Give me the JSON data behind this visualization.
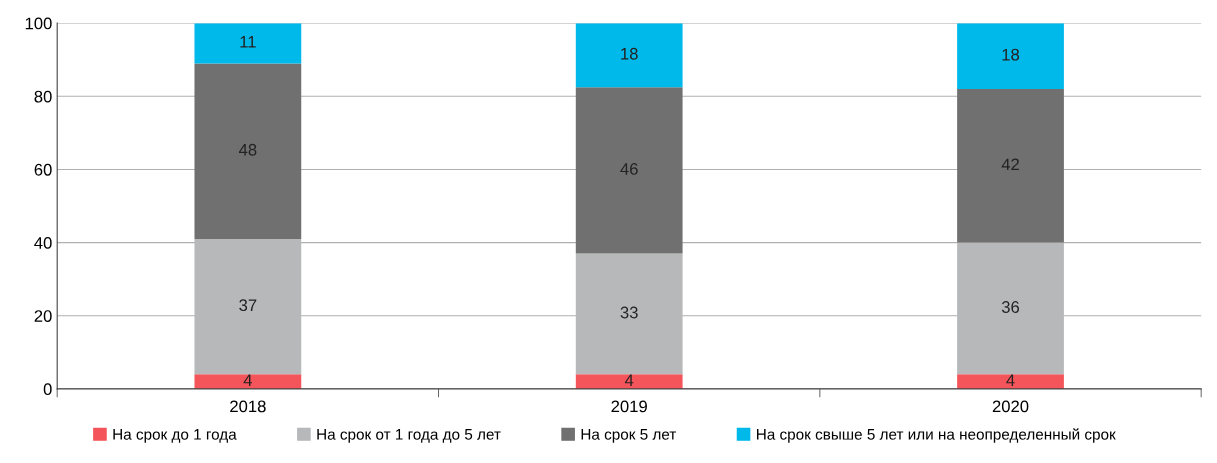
{
  "chart_data": {
    "type": "bar",
    "stacked": true,
    "categories": [
      "2018",
      "2019",
      "2020"
    ],
    "series": [
      {
        "name": "На срок до 1 года",
        "color": "#f4555a",
        "values": [
          4,
          4,
          4
        ],
        "value_labels": [
          "4",
          "4",
          "4"
        ]
      },
      {
        "name": "На срок от 1 года до 5 лет",
        "color": "#b7b8ba",
        "values": [
          37,
          33,
          36
        ],
        "value_labels": [
          "37",
          "33",
          "36"
        ]
      },
      {
        "name": "На срок 5 лет",
        "color": "#6f706f",
        "values": [
          48,
          45.5,
          42
        ],
        "value_labels": [
          "48",
          "46",
          "42"
        ]
      },
      {
        "name": "На срок свыше 5 лет или на неопределенный срок",
        "color": "#00b9eb",
        "values": [
          11,
          17.5,
          18
        ],
        "value_labels": [
          "11",
          "18",
          "18"
        ]
      }
    ],
    "ylim": [
      0,
      100
    ],
    "yticks": [
      0,
      20,
      40,
      60,
      80,
      100
    ],
    "grid": "y",
    "legend": "bottom"
  }
}
